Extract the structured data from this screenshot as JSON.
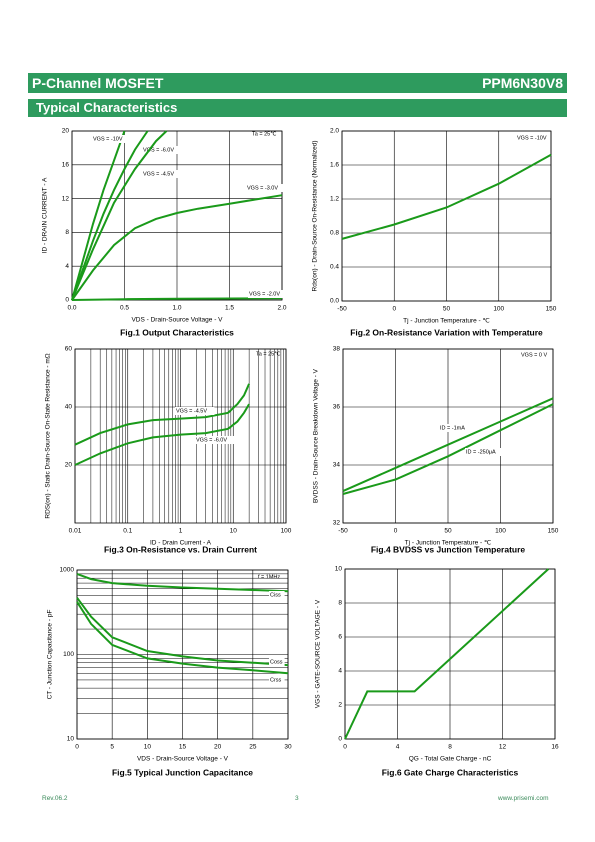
{
  "header": {
    "left": "P-Channel MOSFET",
    "right": "PPM6N30V8",
    "section": "Typical Characteristics"
  },
  "footer": {
    "revision": "Rev.06.2",
    "page": "3",
    "website": "www.prisemi.com"
  },
  "chart_data": [
    {
      "type": "line",
      "title": "Fig.1 Output Characteristics",
      "x_label": "VDS - Drain-Source Voltage - V",
      "y_label": "ID - DRAIN CURRENT - A",
      "xlim": [
        0,
        2
      ],
      "ylim": [
        0,
        20
      ],
      "xticks": [
        {
          "value": 0,
          "label": "0.0"
        },
        0.5,
        {
          "value": 1,
          "label": "1.0"
        },
        1.5,
        {
          "value": 2,
          "label": "2.0"
        }
      ],
      "yticks": [
        0,
        4,
        8,
        12,
        16,
        20
      ],
      "grid": true,
      "annotations": [
        "Ta = 25℃"
      ],
      "series": [
        {
          "name": "VGS = -10V",
          "color": "#1a9a1a",
          "x": [
            0,
            0.1,
            0.2,
            0.3,
            0.4,
            0.5
          ],
          "values": [
            0,
            4.5,
            9,
            13,
            16.5,
            20
          ]
        },
        {
          "name": "VGS = -6.0V",
          "color": "#1a9a1a",
          "x": [
            0,
            0.1,
            0.2,
            0.3,
            0.4,
            0.5,
            0.6,
            0.72
          ],
          "values": [
            0,
            3.5,
            7,
            10.2,
            13,
            15.5,
            17.8,
            20
          ]
        },
        {
          "name": "VGS = -4.5V",
          "color": "#1a9a1a",
          "x": [
            0,
            0.2,
            0.4,
            0.6,
            0.8,
            0.9
          ],
          "values": [
            0,
            6,
            11.5,
            15.5,
            18.8,
            20
          ]
        },
        {
          "name": "VGS = -3.0V",
          "color": "#1a9a1a",
          "x": [
            0,
            0.2,
            0.4,
            0.6,
            0.8,
            1.0,
            1.2,
            1.5,
            1.8,
            2.0
          ],
          "values": [
            0,
            3.5,
            6.5,
            8.5,
            9.6,
            10.3,
            10.8,
            11.4,
            12,
            12.4
          ]
        },
        {
          "name": "VGS = -2.0V",
          "color": "#1a9a1a",
          "x": [
            0,
            0.5,
            1,
            1.5,
            2
          ],
          "values": [
            0,
            0.1,
            0.15,
            0.18,
            0.2
          ]
        }
      ]
    },
    {
      "type": "line",
      "title": "Fig.2 On-Resistance Variation with Temperature",
      "x_label": "Tj - Junction Temperature - ℃",
      "y_label": "Rds(on) - Drain-Source On-Resistance (Normalized)",
      "xlim": [
        -50,
        150
      ],
      "ylim": [
        0,
        2
      ],
      "xticks": [
        -50,
        0,
        50,
        100,
        150
      ],
      "yticks": [
        {
          "value": 0,
          "label": "0.0"
        },
        0.4,
        0.8,
        1.2,
        1.6,
        {
          "value": 2,
          "label": "2.0"
        }
      ],
      "grid": true,
      "annotations": [
        "VGS = -10V"
      ],
      "series": [
        {
          "color": "#1a9a1a",
          "x": [
            -50,
            0,
            50,
            100,
            150
          ],
          "values": [
            0.73,
            0.9,
            1.1,
            1.38,
            1.72
          ]
        }
      ]
    },
    {
      "type": "line",
      "title": "Fig.3 On-Resistance vs. Drain Current",
      "x_label": "ID - Drain Current - A",
      "y_label": "RDS(on) - Static Drain-Source On-State Resistance - mΩ",
      "xlim": [
        0.01,
        100
      ],
      "ylim": [
        0,
        60
      ],
      "xscale": "log",
      "xticks": [
        0.01,
        0.1,
        1,
        10,
        100
      ],
      "yticks": [
        20,
        40,
        60
      ],
      "grid": true,
      "annotations": [
        "Ta = 25℃"
      ],
      "series": [
        {
          "name": "VGS = -4.5V",
          "color": "#1a9a1a",
          "x": [
            0.01,
            0.03,
            0.1,
            0.3,
            1,
            3,
            8,
            12,
            16,
            20
          ],
          "values": [
            27,
            31,
            34,
            35.5,
            36,
            36.5,
            38,
            41,
            44,
            48
          ]
        },
        {
          "name": "VGS = -6.0V",
          "color": "#1a9a1a",
          "x": [
            0.01,
            0.03,
            0.1,
            0.3,
            1,
            3,
            8,
            12,
            16,
            20
          ],
          "values": [
            20,
            24,
            27.5,
            29.5,
            30.5,
            31,
            32.5,
            35,
            38,
            41
          ]
        }
      ]
    },
    {
      "type": "line",
      "title": "Fig.4 BVDSS vs Junction Temperature",
      "x_label": "Tj - Junction Temperature - ℃",
      "y_label": "BVDSS - Drain-Source Breakdown Voltage - V",
      "xlim": [
        -50,
        150
      ],
      "ylim": [
        32,
        38
      ],
      "xticks": [
        -50,
        0,
        50,
        100,
        150
      ],
      "yticks": [
        32,
        34,
        36,
        38
      ],
      "grid": true,
      "annotations": [
        "VGS = 0 V"
      ],
      "series": [
        {
          "name": "ID = -1mA",
          "color": "#1a9a1a",
          "x": [
            -50,
            0,
            50,
            100,
            150
          ],
          "values": [
            33.1,
            33.9,
            34.7,
            35.5,
            36.3
          ]
        },
        {
          "name": "ID = -250μA",
          "color": "#1a9a1a",
          "x": [
            -50,
            0,
            50,
            100,
            150
          ],
          "values": [
            33.0,
            33.5,
            34.3,
            35.2,
            36.1
          ]
        }
      ]
    },
    {
      "type": "line",
      "title": "Fig.5 Typical Junction Capacitance",
      "x_label": "VDS - Drain-Source Voltage - V",
      "y_label": "CT - Junction Capacitance - pF",
      "xlim": [
        0,
        30
      ],
      "ylim": [
        10,
        1000
      ],
      "yscale": "log",
      "xticks": [
        0,
        5,
        10,
        15,
        20,
        25,
        30
      ],
      "yticks": [
        10,
        100,
        1000
      ],
      "grid": true,
      "annotations": [
        "f = 1MHz"
      ],
      "series": [
        {
          "name": "Ciss",
          "color": "#1a9a1a",
          "x": [
            0,
            2,
            5,
            10,
            15,
            20,
            25,
            30
          ],
          "values": [
            900,
            780,
            700,
            650,
            620,
            600,
            580,
            560
          ]
        },
        {
          "name": "Coss",
          "color": "#1a9a1a",
          "x": [
            0,
            2,
            5,
            10,
            15,
            20,
            25,
            30
          ],
          "values": [
            470,
            280,
            160,
            110,
            95,
            85,
            80,
            75
          ]
        },
        {
          "name": "Crss",
          "color": "#1a9a1a",
          "x": [
            0,
            2,
            5,
            10,
            15,
            20,
            25,
            30
          ],
          "values": [
            420,
            230,
            130,
            90,
            78,
            70,
            65,
            60
          ]
        }
      ]
    },
    {
      "type": "line",
      "title": "Fig.6 Gate Charge Characteristics",
      "x_label": "QG - Total Gate Charge - nC",
      "y_label": "VGS - GATE-SOURCE VOLTAGE - V",
      "xlim": [
        0,
        16
      ],
      "ylim": [
        0,
        10
      ],
      "xticks": [
        0,
        4,
        8,
        12,
        16
      ],
      "yticks": [
        0,
        2,
        4,
        6,
        8,
        10
      ],
      "grid": true,
      "series": [
        {
          "color": "#1a9a1a",
          "x": [
            0,
            1.7,
            5.3,
            15.5
          ],
          "values": [
            0,
            2.8,
            2.8,
            10
          ]
        }
      ]
    }
  ]
}
